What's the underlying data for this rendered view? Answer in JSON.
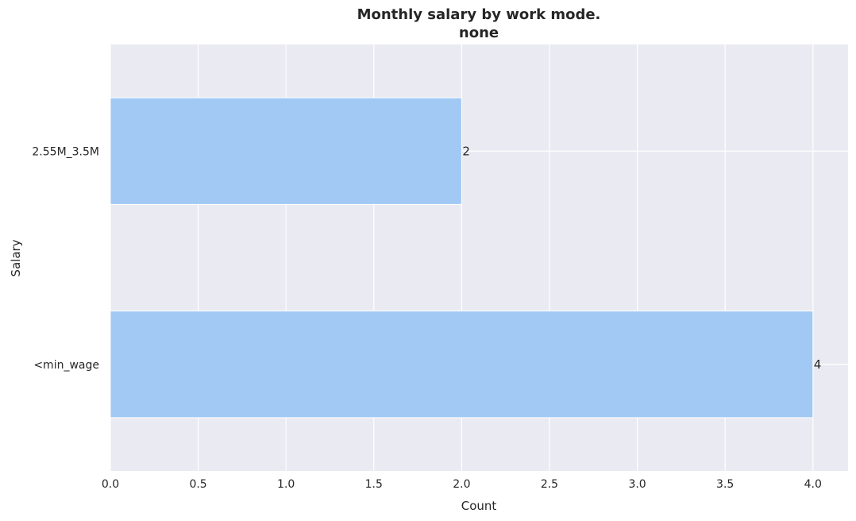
{
  "chart_data": {
    "type": "bar",
    "orientation": "horizontal",
    "title": "Monthly salary by work mode.",
    "subtitle": "none",
    "xlabel": "Count",
    "ylabel": "Salary",
    "categories": [
      "2.55M_3.5M",
      "<min_wage"
    ],
    "values": [
      2,
      4
    ],
    "data_labels": [
      "2",
      "4"
    ],
    "xlim": [
      0,
      4.2
    ],
    "xticks": [
      0,
      0.5,
      1.0,
      1.5,
      2.0,
      2.5,
      3.0,
      3.5,
      4.0
    ],
    "xtick_labels": [
      "0.0",
      "0.5",
      "1.0",
      "1.5",
      "2.0",
      "2.5",
      "3.0",
      "3.5",
      "4.0"
    ],
    "grid": true,
    "colors": {
      "bar": "#a1c9f4",
      "plot_background": "#eaeaf2",
      "grid": "#ffffff"
    }
  }
}
